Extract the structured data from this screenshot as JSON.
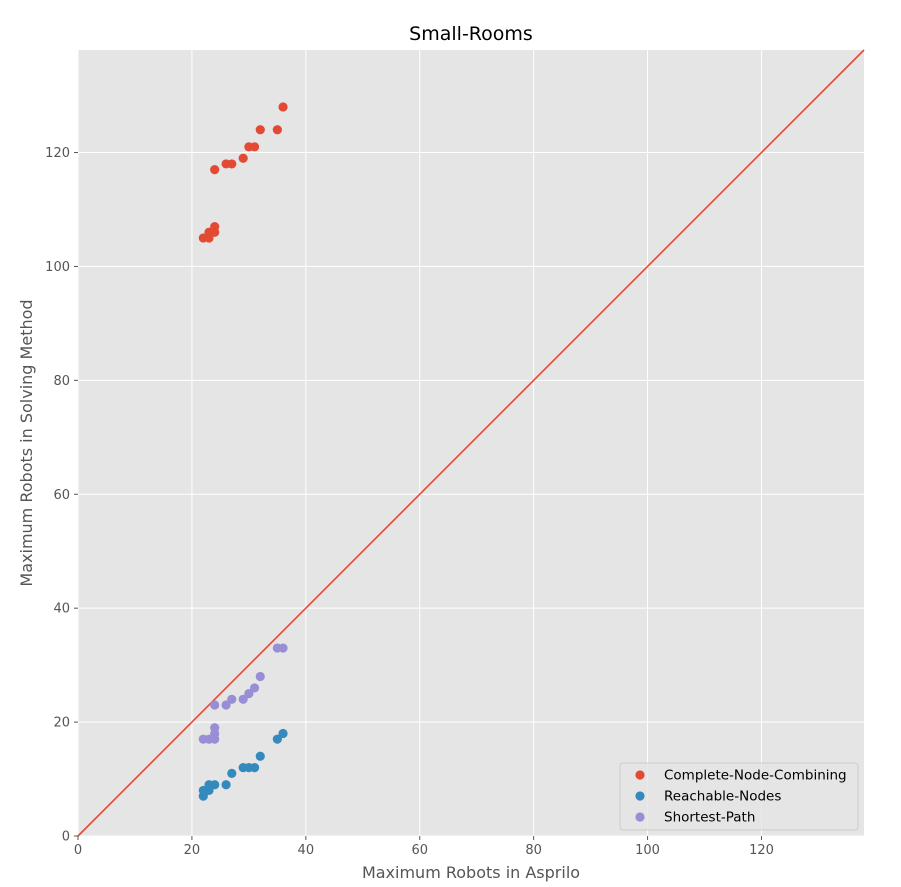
{
  "chart_data": {
    "type": "scatter",
    "title": "Small-Rooms",
    "xlabel": "Maximum Robots in Asprilo",
    "ylabel": "Maximum Robots in Solving Method",
    "xlim": [
      0,
      138
    ],
    "ylim": [
      0,
      138
    ],
    "xticks": [
      0,
      20,
      40,
      60,
      80,
      100,
      120
    ],
    "yticks": [
      0,
      20,
      40,
      60,
      80,
      100,
      120
    ],
    "grid": true,
    "legend_position": "bottom-right",
    "reference_line": {
      "from": [
        0,
        0
      ],
      "to": [
        138,
        138
      ],
      "color": "#E24A33"
    },
    "series": [
      {
        "name": "Complete-Node-Combining",
        "color": "#E24A33",
        "points": [
          [
            22,
            105
          ],
          [
            23,
            105
          ],
          [
            23,
            106
          ],
          [
            24,
            106
          ],
          [
            24,
            107
          ],
          [
            24,
            117
          ],
          [
            26,
            118
          ],
          [
            27,
            118
          ],
          [
            29,
            119
          ],
          [
            30,
            121
          ],
          [
            31,
            121
          ],
          [
            32,
            124
          ],
          [
            35,
            124
          ],
          [
            36,
            128
          ]
        ]
      },
      {
        "name": "Reachable-Nodes",
        "color": "#348ABD",
        "points": [
          [
            22,
            7
          ],
          [
            22,
            8
          ],
          [
            23,
            8
          ],
          [
            23,
            9
          ],
          [
            24,
            9
          ],
          [
            26,
            9
          ],
          [
            27,
            11
          ],
          [
            29,
            12
          ],
          [
            30,
            12
          ],
          [
            31,
            12
          ],
          [
            32,
            14
          ],
          [
            35,
            17
          ],
          [
            36,
            18
          ]
        ]
      },
      {
        "name": "Shortest-Path",
        "color": "#988ED5",
        "points": [
          [
            22,
            17
          ],
          [
            23,
            17
          ],
          [
            24,
            17
          ],
          [
            24,
            18
          ],
          [
            24,
            19
          ],
          [
            24,
            23
          ],
          [
            26,
            23
          ],
          [
            27,
            24
          ],
          [
            29,
            24
          ],
          [
            30,
            25
          ],
          [
            31,
            26
          ],
          [
            32,
            28
          ],
          [
            35,
            33
          ],
          [
            36,
            33
          ]
        ]
      }
    ]
  }
}
